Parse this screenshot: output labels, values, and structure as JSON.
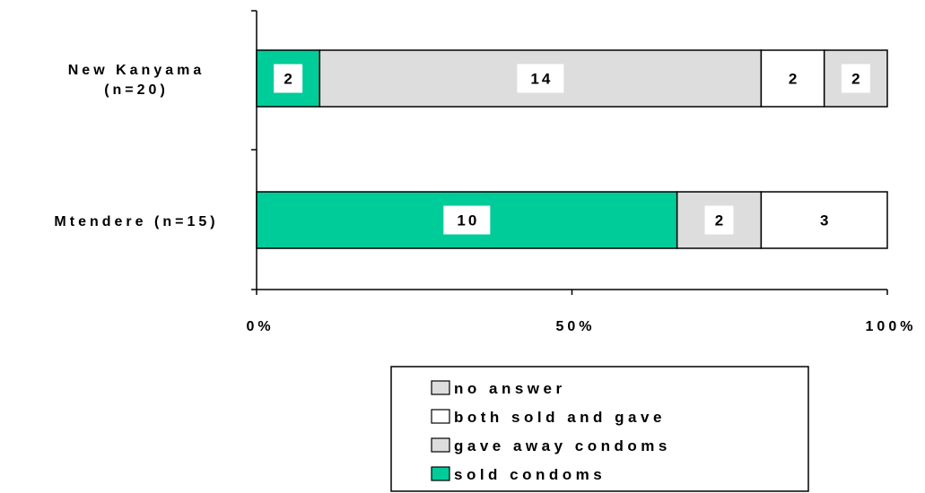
{
  "chart_data": {
    "type": "bar",
    "orientation": "horizontal",
    "stacked": "percent",
    "categories": [
      "New Kanyama\n(n=20)",
      "Mtendere (n=15)"
    ],
    "series": [
      {
        "name": "sold condoms",
        "values": [
          2,
          10
        ],
        "color": "#00cc99"
      },
      {
        "name": "gave away condoms",
        "values": [
          14,
          2
        ],
        "color": "#dddddd"
      },
      {
        "name": "both sold and gave",
        "values": [
          2,
          3
        ],
        "color": "#ffffff"
      },
      {
        "name": "no answer",
        "values": [
          2,
          0
        ],
        "color": "#dddddd"
      }
    ],
    "x_ticks": [
      "0%",
      "50%",
      "100%"
    ],
    "xlim": [
      0,
      100
    ],
    "grid": false,
    "legend_position": "bottom-center"
  }
}
